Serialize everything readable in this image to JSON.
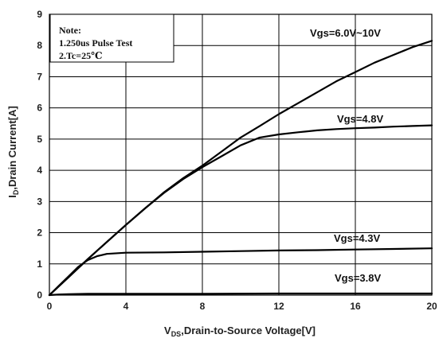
{
  "chart_data": {
    "type": "line",
    "xlabel_main": "V",
    "xlabel_sub": "DS",
    "xlabel_rest": ",Drain-to-Source Voltage[V]",
    "ylabel_main": "I",
    "ylabel_sub": "D",
    "ylabel_rest": ",Drain Current[A]",
    "xlim": [
      0,
      20
    ],
    "ylim": [
      0,
      9
    ],
    "x_ticks": [
      "0",
      "4",
      "8",
      "12",
      "16",
      "20"
    ],
    "y_ticks": [
      "0",
      "1",
      "2",
      "3",
      "4",
      "5",
      "6",
      "7",
      "8",
      "9"
    ],
    "grid": true,
    "note": {
      "title": "Note:",
      "line1": "1.250us Pulse Test",
      "line2": "2.Tc=25℃"
    },
    "series": [
      {
        "name": "Vgs=6.0V~10V",
        "x": [
          0,
          1,
          2,
          3,
          4,
          5,
          6,
          7,
          8,
          9,
          10,
          11,
          12,
          13,
          14,
          15,
          16,
          17,
          18,
          19,
          20
        ],
        "y": [
          0,
          0.57,
          1.15,
          1.7,
          2.25,
          2.78,
          3.3,
          3.75,
          4.15,
          4.6,
          5.05,
          5.42,
          5.8,
          6.15,
          6.5,
          6.85,
          7.15,
          7.45,
          7.7,
          7.95,
          8.15
        ]
      },
      {
        "name": "Vgs=4.8V",
        "x": [
          0,
          1,
          2,
          3,
          4,
          5,
          6,
          7,
          8,
          9,
          10,
          11,
          12,
          13,
          14,
          15,
          16,
          17,
          18,
          19,
          20
        ],
        "y": [
          0,
          0.57,
          1.15,
          1.7,
          2.25,
          2.78,
          3.28,
          3.72,
          4.1,
          4.45,
          4.8,
          5.05,
          5.15,
          5.22,
          5.28,
          5.32,
          5.35,
          5.37,
          5.4,
          5.42,
          5.44
        ]
      },
      {
        "name": "Vgs=4.3V",
        "x": [
          0,
          0.5,
          1,
          1.5,
          2,
          2.5,
          3,
          4,
          6,
          8,
          10,
          12,
          14,
          16,
          18,
          20
        ],
        "y": [
          0,
          0.3,
          0.6,
          0.9,
          1.12,
          1.25,
          1.32,
          1.36,
          1.37,
          1.39,
          1.41,
          1.43,
          1.44,
          1.46,
          1.48,
          1.5
        ]
      },
      {
        "name": "Vgs=3.8V",
        "x": [
          0,
          0.5,
          1,
          2,
          4,
          8,
          12,
          16,
          20
        ],
        "y": [
          0,
          0.02,
          0.03,
          0.04,
          0.04,
          0.04,
          0.05,
          0.05,
          0.05
        ]
      }
    ]
  }
}
